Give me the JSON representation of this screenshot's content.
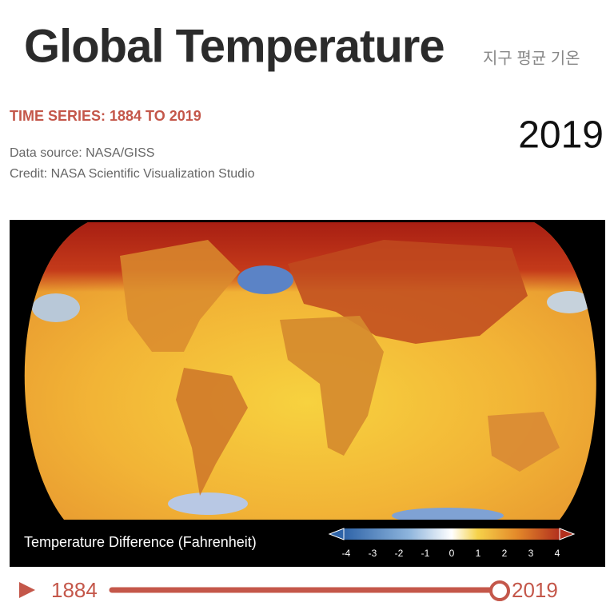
{
  "header": {
    "title": "Global Temperature",
    "subtitle": "지구 평균 기온"
  },
  "info": {
    "series": "TIME SERIES: 1884 TO 2019",
    "source": "Data source: NASA/GISS",
    "credit": "Credit: NASA Scientific Visualization Studio",
    "year": 2019
  },
  "legend": {
    "title": "Temperature Difference (Fahrenheit)",
    "ticks": [
      -4,
      -3,
      -2,
      -1,
      0,
      1,
      2,
      3,
      4
    ]
  },
  "player": {
    "start": 1884,
    "end": 2019,
    "current": 2019
  }
}
